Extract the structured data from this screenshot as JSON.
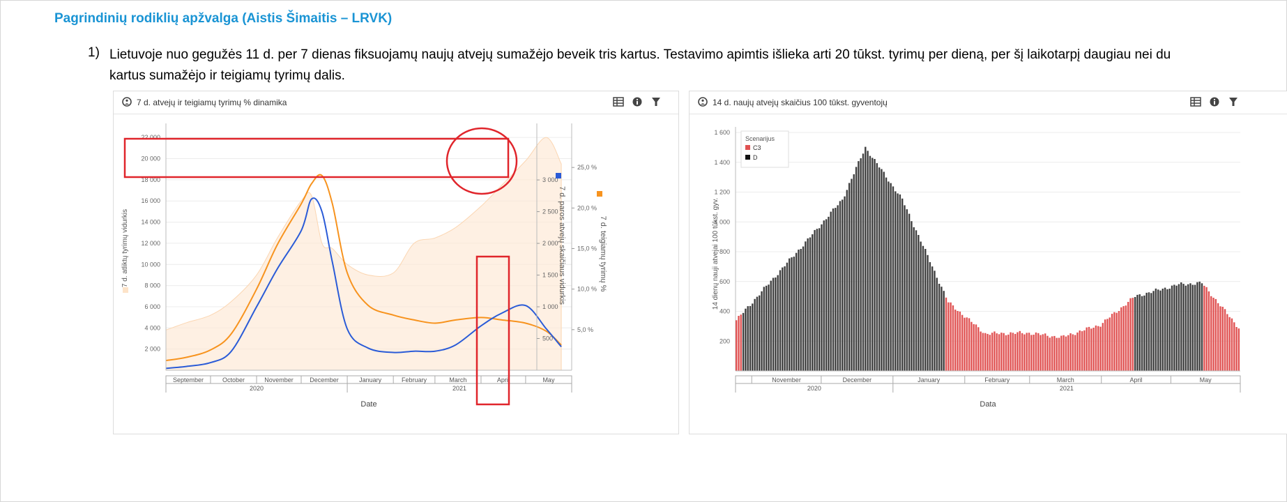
{
  "document": {
    "title": "Pagrindinių rodiklių apžvalga (Aistis Šimaitis – LRVK)",
    "item_number": "1)",
    "item_text": "Lietuvoje nuo gegužės 11 d. per 7 dienas fiksuojamų naujų atvejų sumažėjo beveik tris kartus. Testavimo apimtis išlieka arti 20 tūkst. tyrimų per dieną, per šį laikotarpį daugiau nei du kartus sumažėjo ir teigiamų tyrimų dalis."
  },
  "icons": [
    "info-circle-icon",
    "table-icon",
    "info-icon",
    "filter-icon"
  ],
  "colors": {
    "blue": "#2a5bd7",
    "orange": "#f7931e",
    "area": "#fde8d4",
    "red_bar": "#e05252",
    "dark_bar": "#3d3d3d",
    "annotation": "#e0252b",
    "title_blue": "#1a94d4"
  },
  "chart_data": [
    {
      "type": "line",
      "title": "7 d. atvejų ir teigiamų tyrimų % dinamika",
      "xlabel": "Date",
      "x_months": [
        "September",
        "October",
        "November",
        "December",
        "January",
        "February",
        "March",
        "April",
        "May"
      ],
      "x_years": [
        "2020",
        "2021"
      ],
      "x": [
        "2020-09-01",
        "2020-09-15",
        "2020-10-01",
        "2020-10-15",
        "2020-11-01",
        "2020-11-15",
        "2020-12-01",
        "2020-12-08",
        "2020-12-15",
        "2020-12-22",
        "2021-01-01",
        "2021-01-15",
        "2021-02-01",
        "2021-02-15",
        "2021-03-01",
        "2021-03-15",
        "2021-04-01",
        "2021-04-15",
        "2021-05-01",
        "2021-05-15",
        "2021-05-25"
      ],
      "y_left": {
        "label": "7 d. atliktų tyrimų vidurkis",
        "ticks": [
          "2 000",
          "4 000",
          "6 000",
          "8 000",
          "10 000",
          "12 000",
          "14 000",
          "16 000",
          "18 000",
          "20 000",
          "22 000"
        ],
        "range": [
          0,
          23000
        ]
      },
      "y_right_cases": {
        "label": "7 d. paros atvejų skaičiaus vidurkis",
        "ticks": [
          "500",
          "1 000",
          "1 500",
          "2 000",
          "2 500",
          "3 000"
        ],
        "range": [
          0,
          3000
        ]
      },
      "y_right_pct": {
        "label": "7 d. teigiamų tyrimų %",
        "ticks": [
          "5,0 %",
          "10,0 %",
          "15,0 %",
          "20,0 %",
          "25,0 %"
        ],
        "range": [
          0,
          30
        ]
      },
      "series": [
        {
          "axis": "left",
          "style": "area",
          "values": [
            3800,
            4500,
            5200,
            6500,
            9000,
            12500,
            16000,
            16500,
            12000,
            11500,
            10000,
            9000,
            9200,
            12000,
            12500,
            13500,
            15500,
            17500,
            19800,
            22000,
            19500
          ]
        },
        {
          "axis": "cases",
          "style": "line",
          "values": [
            30,
            60,
            120,
            300,
            1000,
            1600,
            2200,
            2700,
            2500,
            1700,
            650,
            350,
            280,
            300,
            300,
            400,
            700,
            900,
            1020,
            650,
            370
          ]
        },
        {
          "axis": "pct",
          "style": "line",
          "values": [
            1.2,
            1.6,
            2.5,
            4.5,
            10,
            15.5,
            20.5,
            23,
            24,
            20.5,
            12,
            8,
            6.8,
            6.2,
            5.8,
            6.2,
            6.5,
            6.2,
            5.8,
            4.8,
            3.1
          ]
        }
      ]
    },
    {
      "type": "bar",
      "title": "14 d. naujų atvejų skaičius 100 tūkst. gyventojų",
      "xlabel": "Data",
      "ylabel": "14 dienų nauji atvejai 100 tūkst. gyv.",
      "ylim": [
        0,
        1600
      ],
      "y_ticks": [
        "200",
        "400",
        "600",
        "800",
        "1 000",
        "1 200",
        "1 400",
        "1 600"
      ],
      "x_months": [
        "November",
        "December",
        "January",
        "February",
        "March",
        "April",
        "May"
      ],
      "x_years": [
        "2020",
        "2021"
      ],
      "legend": {
        "title": "Scenarijus",
        "items": [
          "C3",
          "D"
        ]
      },
      "series": [
        {
          "name": "C3",
          "x": [
            "2020-10-25",
            "2021-01-25",
            "2021-04-15",
            "2021-05-31"
          ]
        },
        {
          "name": "D",
          "x": [
            "2020-10-28",
            "2021-01-23",
            "2021-04-16",
            "2021-05-15"
          ]
        }
      ],
      "keypoints": {
        "dates": [
          "2020-10-25",
          "2020-11-10",
          "2020-11-25",
          "2020-12-10",
          "2020-12-20",
          "2021-01-05",
          "2021-01-25",
          "2021-02-10",
          "2021-03-01",
          "2021-03-15",
          "2021-04-01",
          "2021-04-16",
          "2021-05-05",
          "2021-05-15",
          "2021-05-31"
        ],
        "values": [
          340,
          620,
          880,
          1150,
          1500,
          1150,
          460,
          250,
          255,
          225,
          310,
          500,
          580,
          590,
          290
        ]
      }
    }
  ]
}
